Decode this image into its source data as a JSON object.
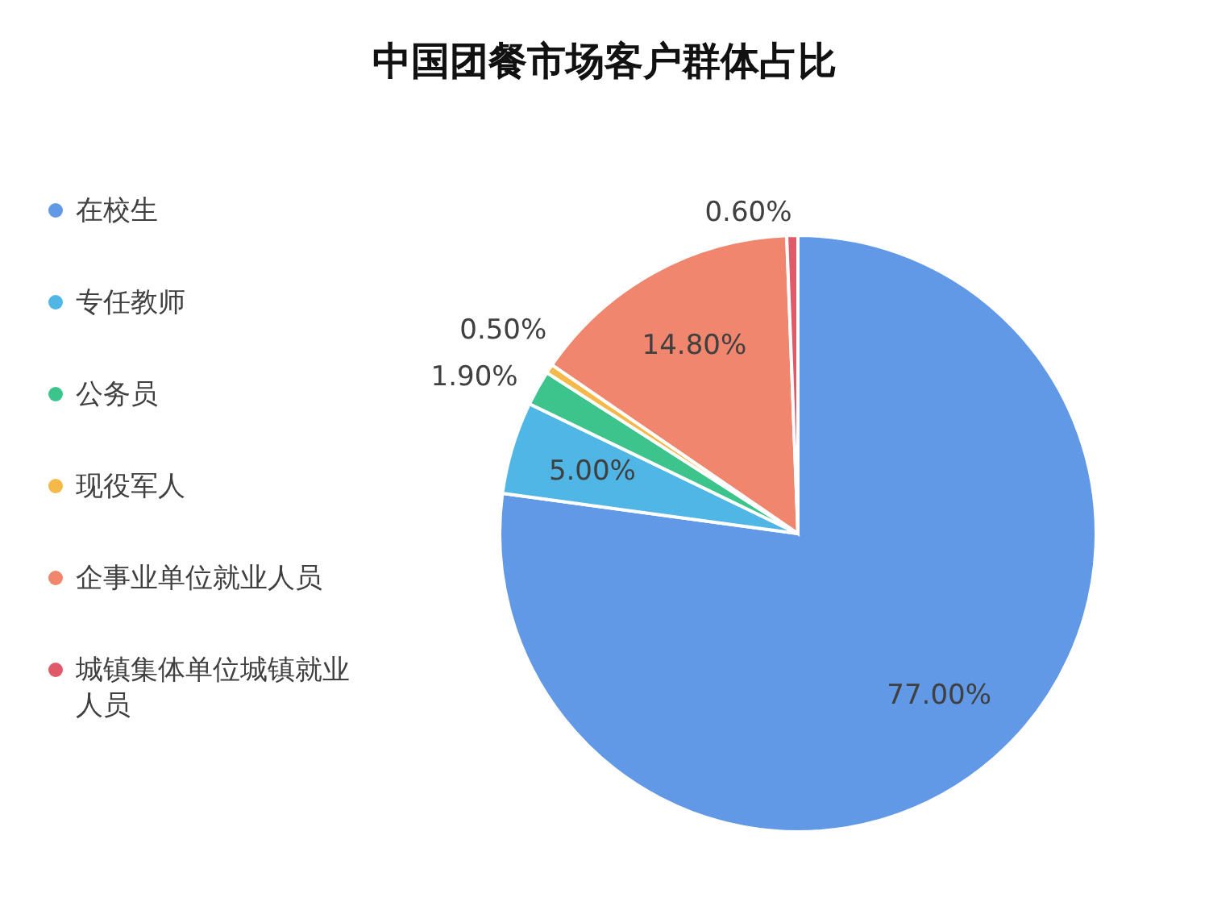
{
  "chart_data": {
    "type": "pie",
    "title": "中国团餐市场客户群体占比",
    "categories": [
      "在校生",
      "专任教师",
      "公务员",
      "现役军人",
      "企事业单位就业人员",
      "城镇集体单位城镇就业人员"
    ],
    "values": [
      77.0,
      5.0,
      1.9,
      0.5,
      14.8,
      0.6
    ],
    "value_labels": [
      "77.00%",
      "5.00%",
      "1.90%",
      "0.50%",
      "14.80%",
      "0.60%"
    ],
    "colors": [
      "#6199e6",
      "#4fb6e6",
      "#3cc48c",
      "#f5b94a",
      "#f0866e",
      "#e05a6a"
    ],
    "legend": "left"
  }
}
